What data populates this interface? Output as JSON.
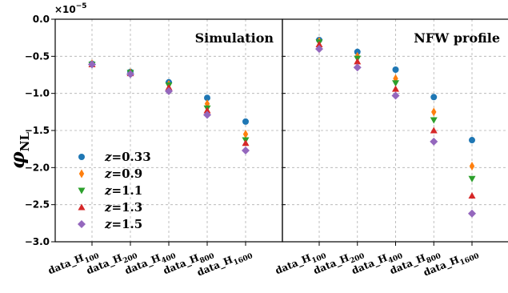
{
  "chart_data": {
    "type": "scatter",
    "ylabel": "φ",
    "ylabel_sub": "NL",
    "y_exponent_label": "×10",
    "y_exponent_power": "−5",
    "ylim": [
      -3.0,
      0.0
    ],
    "y_ticks": [
      0.0,
      -0.5,
      -1.0,
      -1.5,
      -2.0,
      -2.5,
      -3.0
    ],
    "y_tick_labels": [
      "0.0",
      "−0.5",
      "−1.0",
      "−1.5",
      "−2.0",
      "−2.5",
      "−3.0"
    ],
    "y_scale_factor": "1e-5",
    "categories": [
      {
        "main": "data_H",
        "sub": "100"
      },
      {
        "main": "data_H",
        "sub": "200"
      },
      {
        "main": "data_H",
        "sub": "400"
      },
      {
        "main": "data_H",
        "sub": "800"
      },
      {
        "main": "data_H",
        "sub": "1600"
      }
    ],
    "grid": true,
    "legend": {
      "placement": "lower-left of left panel",
      "z_symbol": "z",
      "eq": "=",
      "entries": [
        "0.33",
        "0.9",
        "1.1",
        "1.3",
        "1.5"
      ]
    },
    "series_styles": [
      {
        "color": "#1f77b4",
        "marker": "circle"
      },
      {
        "color": "#ff7f0e",
        "marker": "thin_diamond"
      },
      {
        "color": "#2ca02c",
        "marker": "triangle_down"
      },
      {
        "color": "#d62728",
        "marker": "triangle_up"
      },
      {
        "color": "#9467bd",
        "marker": "diamond"
      }
    ],
    "panels": [
      {
        "title": "Simulation",
        "series": [
          {
            "values": [
              -0.6,
              -0.71,
              -0.85,
              -1.06,
              -1.38
            ]
          },
          {
            "values": [
              -0.6,
              -0.72,
              -0.88,
              -1.14,
              -1.55
            ]
          },
          {
            "values": [
              -0.61,
              -0.72,
              -0.89,
              -1.2,
              -1.63
            ]
          },
          {
            "values": [
              -0.61,
              -0.73,
              -0.92,
              -1.23,
              -1.67
            ]
          },
          {
            "values": [
              -0.61,
              -0.74,
              -0.97,
              -1.29,
              -1.77
            ]
          }
        ]
      },
      {
        "title": "NFW profile",
        "series": [
          {
            "values": [
              -0.28,
              -0.44,
              -0.68,
              -1.05,
              -1.63
            ]
          },
          {
            "values": [
              -0.3,
              -0.5,
              -0.8,
              -1.25,
              -1.98
            ]
          },
          {
            "values": [
              -0.31,
              -0.53,
              -0.86,
              -1.36,
              -2.15
            ]
          },
          {
            "values": [
              -0.34,
              -0.57,
              -0.94,
              -1.5,
              -2.38
            ]
          },
          {
            "values": [
              -0.4,
              -0.65,
              -1.03,
              -1.65,
              -2.62
            ]
          }
        ]
      }
    ]
  }
}
